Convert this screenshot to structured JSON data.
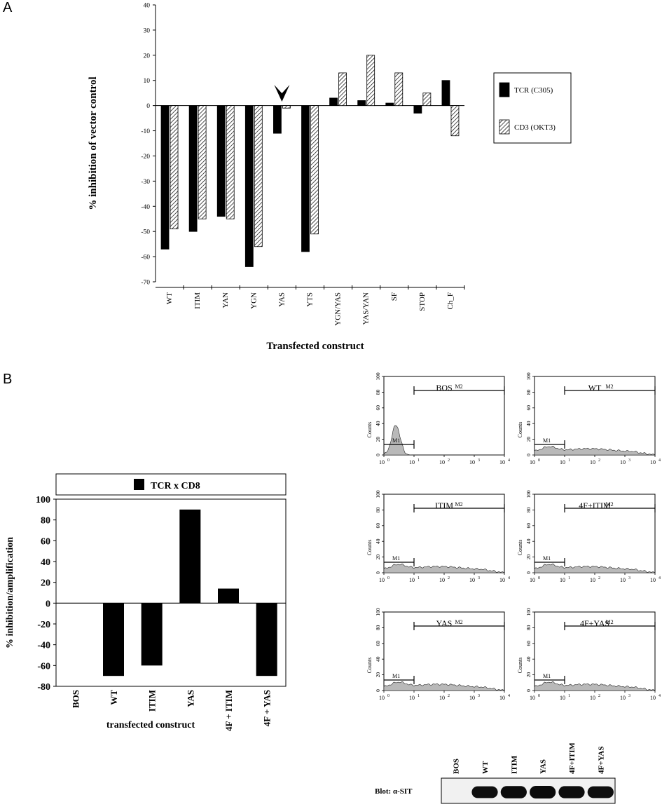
{
  "panel_labels": {
    "a": "A",
    "b": "B"
  },
  "chart_data": [
    {
      "id": "panelA",
      "type": "bar",
      "ylabel": "% inhibition of vector control",
      "xlabel": "Transfected construct",
      "ylim": [
        -70,
        40
      ],
      "yticks": [
        40,
        30,
        20,
        10,
        0,
        -10,
        -20,
        -30,
        -40,
        -50,
        -60,
        -70
      ],
      "categories": [
        "WT",
        "ITIM",
        "YAN",
        "YGN",
        "YAS",
        "YTS",
        "YGN/YAS",
        "YAS/YAN",
        "SF",
        "STOP",
        "Ch_F"
      ],
      "series": [
        {
          "name": "TCR (C305)",
          "color": "#000000",
          "values": [
            -57,
            -50,
            -44,
            -64,
            -11,
            -58,
            3,
            2,
            1,
            -3,
            10
          ]
        },
        {
          "name": "CD3 (OKT3)",
          "pattern": "hatch",
          "values": [
            -49,
            -45,
            -45,
            -56,
            -1,
            -51,
            13,
            20,
            13,
            5,
            -12
          ]
        }
      ],
      "annotation": {
        "type": "arrowhead",
        "category": "YAS"
      }
    },
    {
      "id": "panelB",
      "type": "bar",
      "ylabel": "% inhibition/amplification",
      "xlabel": "transfected construct",
      "ylim": [
        -80,
        100
      ],
      "yticks": [
        100,
        80,
        60,
        40,
        20,
        0,
        -20,
        -40,
        -60,
        -80
      ],
      "categories": [
        "BOS",
        "WT",
        "ITIM",
        "YAS",
        "4F + ITIM",
        "4F + YAS"
      ],
      "series": [
        {
          "name": "TCR x CD8",
          "color": "#000000",
          "values": [
            0,
            -70,
            -60,
            90,
            14,
            -70
          ]
        }
      ]
    },
    {
      "id": "flow-histograms",
      "type": "histogram-grid",
      "ylabel": "Counts",
      "yticks": [
        0,
        20,
        40,
        60,
        80,
        100
      ],
      "xticks": [
        "10",
        "10",
        "10",
        "10",
        "10"
      ],
      "xtick_exps": [
        "0",
        "1",
        "2",
        "3",
        "4"
      ],
      "marker_labels": [
        "M1",
        "M2"
      ],
      "panels": [
        {
          "title": "BOS",
          "profile": "peak"
        },
        {
          "title": "WT",
          "profile": "broad"
        },
        {
          "title": "ITIM",
          "profile": "broad"
        },
        {
          "title": "4F+ITIM",
          "profile": "broad"
        },
        {
          "title": "YAS",
          "profile": "broad"
        },
        {
          "title": "4F+YAS",
          "profile": "broad"
        }
      ]
    }
  ],
  "blot": {
    "label": "Blot: α-SIT",
    "lanes": [
      "BOS",
      "WT",
      "ITIM",
      "YAS",
      "4F+ITIM",
      "4F+YAS"
    ],
    "band_intensity": [
      0,
      0.85,
      0.95,
      1.0,
      0.9,
      0.85
    ]
  }
}
